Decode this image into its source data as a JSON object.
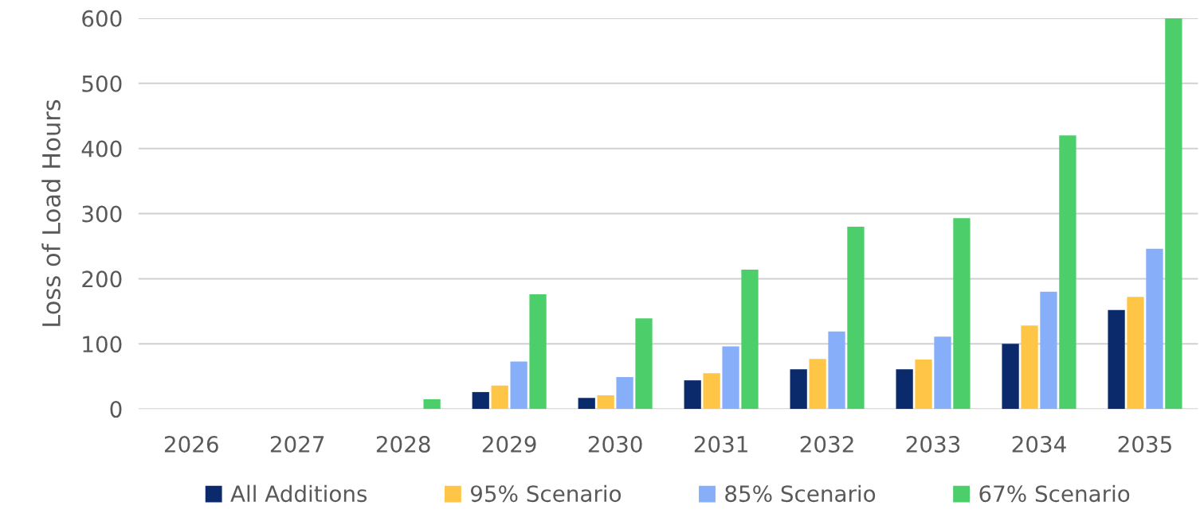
{
  "chart_data": {
    "type": "bar",
    "ylabel": "Loss of Load Hours",
    "categories": [
      "2026",
      "2027",
      "2028",
      "2029",
      "2030",
      "2031",
      "2032",
      "2033",
      "2034",
      "2035"
    ],
    "series": [
      {
        "name": "All Additions",
        "color": "#0b2a6b",
        "values": [
          0,
          0,
          0,
          26,
          17,
          44,
          61,
          61,
          100,
          152
        ]
      },
      {
        "name": "95% Scenario",
        "color": "#ffc547",
        "values": [
          0,
          0,
          0,
          36,
          21,
          55,
          77,
          76,
          128,
          172
        ]
      },
      {
        "name": "85% Scenario",
        "color": "#86aef9",
        "values": [
          0,
          0,
          0,
          73,
          49,
          96,
          119,
          111,
          180,
          246
        ]
      },
      {
        "name": "67% Scenario",
        "color": "#4ccf6b",
        "values": [
          0,
          0,
          15,
          176,
          139,
          214,
          280,
          293,
          420,
          600
        ]
      }
    ],
    "ylim": [
      0,
      600
    ],
    "yticks": [
      0,
      100,
      200,
      300,
      400,
      500,
      600
    ],
    "grid": "y",
    "legend": "bottom"
  }
}
